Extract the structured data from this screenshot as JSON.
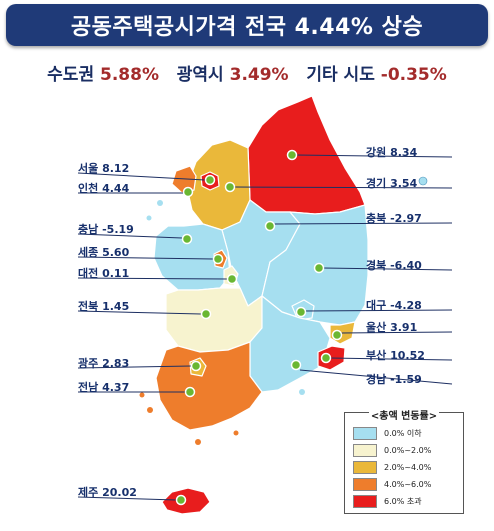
{
  "title": "공동주택공시가격 전국 4.44% 상승",
  "summary": [
    {
      "label": "수도권",
      "value": "5.88%"
    },
    {
      "label": "광역시",
      "value": "3.49%"
    },
    {
      "label": "기타 시도",
      "value": "-0.35%"
    }
  ],
  "colors": {
    "banner": "#1f3a78",
    "le0": "#a6dff0",
    "r0to2": "#f7f3cf",
    "r2to4": "#eab83a",
    "r4to6": "#ee7d2c",
    "over6": "#e81d1d",
    "marker": "#6ab732"
  },
  "regions": [
    {
      "id": "seoul",
      "name": "서울",
      "value": "8.12",
      "color_key": "over6"
    },
    {
      "id": "incheon",
      "name": "인천",
      "value": "4.44",
      "color_key": "r4to6"
    },
    {
      "id": "chungnam",
      "name": "충남",
      "value": "-5.19",
      "color_key": "le0"
    },
    {
      "id": "sejong",
      "name": "세종",
      "value": "5.60",
      "color_key": "r4to6"
    },
    {
      "id": "daejeon",
      "name": "대전",
      "value": "0.11",
      "color_key": "r0to2"
    },
    {
      "id": "jeonbuk",
      "name": "전북",
      "value": "1.45",
      "color_key": "r0to2"
    },
    {
      "id": "gwangju",
      "name": "광주",
      "value": "2.83",
      "color_key": "r2to4"
    },
    {
      "id": "jeonnam",
      "name": "전남",
      "value": "4.37",
      "color_key": "r4to6"
    },
    {
      "id": "jeju",
      "name": "제주",
      "value": "20.02",
      "color_key": "over6"
    },
    {
      "id": "gangwon",
      "name": "강원",
      "value": "8.34",
      "color_key": "over6"
    },
    {
      "id": "gyeonggi",
      "name": "경기",
      "value": "3.54",
      "color_key": "r2to4"
    },
    {
      "id": "chungbuk",
      "name": "충북",
      "value": "-2.97",
      "color_key": "le0"
    },
    {
      "id": "gyeongbuk",
      "name": "경북",
      "value": "-6.40",
      "color_key": "le0"
    },
    {
      "id": "daegu",
      "name": "대구",
      "value": "-4.28",
      "color_key": "le0"
    },
    {
      "id": "ulsan",
      "name": "울산",
      "value": "3.91",
      "color_key": "r2to4"
    },
    {
      "id": "busan",
      "name": "부산",
      "value": "10.52",
      "color_key": "over6"
    },
    {
      "id": "gyeongnam",
      "name": "경남",
      "value": "-1.59",
      "color_key": "le0"
    }
  ],
  "legend": {
    "title": "<총액 변동률>",
    "items": [
      {
        "label": "0.0% 이하",
        "color_key": "le0"
      },
      {
        "label": "0.0%~2.0%",
        "color_key": "r0to2"
      },
      {
        "label": "2.0%~4.0%",
        "color_key": "r2to4"
      },
      {
        "label": "4.0%~6.0%",
        "color_key": "r4to6"
      },
      {
        "label": "6.0% 초과",
        "color_key": "over6"
      }
    ]
  }
}
